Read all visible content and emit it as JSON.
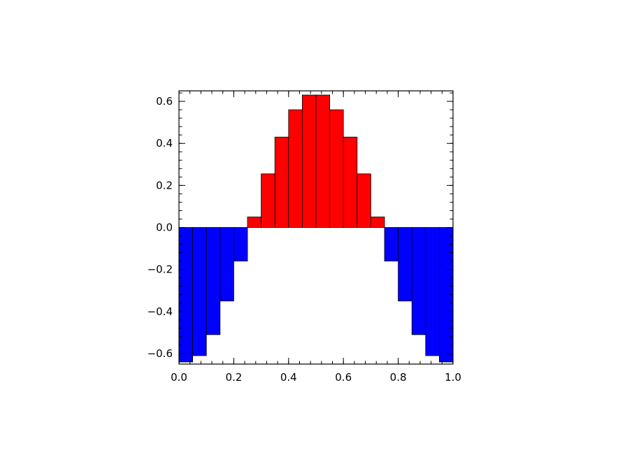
{
  "chart_data": {
    "type": "bar",
    "title": "",
    "xlabel": "",
    "ylabel": "",
    "xlim": [
      0.0,
      1.0
    ],
    "ylim": [
      -0.65,
      0.65
    ],
    "bin_width": 0.05,
    "x": [
      0.025,
      0.075,
      0.125,
      0.175,
      0.225,
      0.275,
      0.325,
      0.375,
      0.425,
      0.475,
      0.525,
      0.575,
      0.625,
      0.675,
      0.725,
      0.775,
      0.825,
      0.875,
      0.925,
      0.975
    ],
    "values": [
      -0.64,
      -0.61,
      -0.51,
      -0.35,
      -0.16,
      0.05,
      0.255,
      0.43,
      0.56,
      0.63,
      0.63,
      0.56,
      0.43,
      0.255,
      0.05,
      -0.16,
      -0.35,
      -0.51,
      -0.61,
      -0.64
    ],
    "colors": {
      "positive": "#ff0000",
      "negative": "#0000ff",
      "bar_edge": "#000000",
      "axis": "#000000"
    },
    "x_ticks": [
      {
        "value": 0.0,
        "label": "0.0"
      },
      {
        "value": 0.2,
        "label": "0.2"
      },
      {
        "value": 0.4,
        "label": "0.4"
      },
      {
        "value": 0.6,
        "label": "0.6"
      },
      {
        "value": 0.8,
        "label": "0.8"
      },
      {
        "value": 1.0,
        "label": "1.0"
      }
    ],
    "y_ticks": [
      {
        "value": -0.6,
        "label": "−0.6"
      },
      {
        "value": -0.4,
        "label": "−0.4"
      },
      {
        "value": -0.2,
        "label": "−0.2"
      },
      {
        "value": 0.0,
        "label": "0.0"
      },
      {
        "value": 0.2,
        "label": "0.2"
      },
      {
        "value": 0.4,
        "label": "0.4"
      },
      {
        "value": 0.6,
        "label": "0.6"
      }
    ],
    "minor_tick_step_x": 0.04,
    "minor_tick_step_y": 0.04,
    "grid": false,
    "legend": "none"
  }
}
